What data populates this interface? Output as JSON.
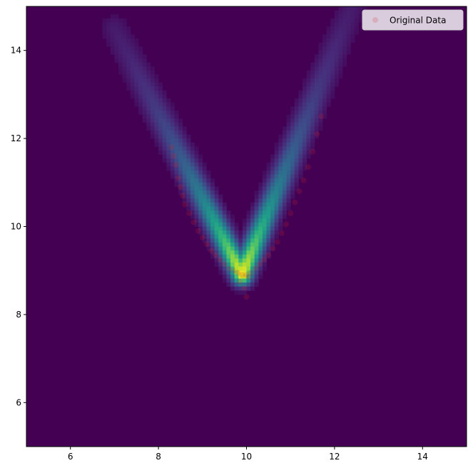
{
  "chart_data": {
    "type": "heatmap",
    "title": "",
    "xlabel": "",
    "ylabel": "",
    "xlim": [
      5,
      15
    ],
    "ylim": [
      5,
      15
    ],
    "xticks": [
      6,
      8,
      10,
      12,
      14
    ],
    "yticks": [
      6,
      8,
      10,
      12,
      14
    ],
    "grid": false,
    "legend": {
      "position": "top-right",
      "entries": [
        "Original Data"
      ]
    },
    "density": {
      "description_of_shape": "V-shaped density ridge",
      "vertex": [
        9.9,
        8.9
      ],
      "left_arm_end": [
        7.0,
        14.5
      ],
      "right_arm_end": [
        12.4,
        15.0
      ],
      "colormap": "viridis",
      "background_color": "#440154"
    },
    "series": [
      {
        "name": "Original Data",
        "type": "scatter",
        "color": "#d62728",
        "x": [
          8.3,
          8.35,
          8.4,
          8.45,
          8.5,
          8.55,
          8.6,
          8.7,
          8.8,
          8.9,
          9.0,
          9.1,
          9.2,
          9.3,
          9.4,
          9.5,
          9.6,
          9.7,
          9.8,
          9.9,
          10.0,
          10.05,
          10.1,
          10.2,
          10.3,
          10.4,
          10.5,
          10.6,
          10.7,
          10.8,
          10.9,
          11.0,
          11.1,
          11.2,
          11.3,
          11.4,
          11.5,
          11.6,
          11.7,
          9.95,
          10.0,
          9.85
        ],
        "y": [
          11.8,
          11.6,
          11.4,
          11.1,
          10.9,
          10.7,
          10.5,
          10.3,
          10.1,
          9.9,
          9.75,
          9.6,
          9.45,
          9.35,
          9.25,
          9.15,
          9.05,
          9.0,
          8.95,
          8.9,
          8.9,
          8.85,
          8.95,
          9.05,
          9.15,
          9.25,
          9.35,
          9.5,
          9.65,
          9.85,
          10.05,
          10.3,
          10.55,
          10.8,
          11.05,
          11.35,
          11.7,
          12.1,
          12.5,
          8.6,
          8.4,
          8.75
        ]
      }
    ]
  }
}
